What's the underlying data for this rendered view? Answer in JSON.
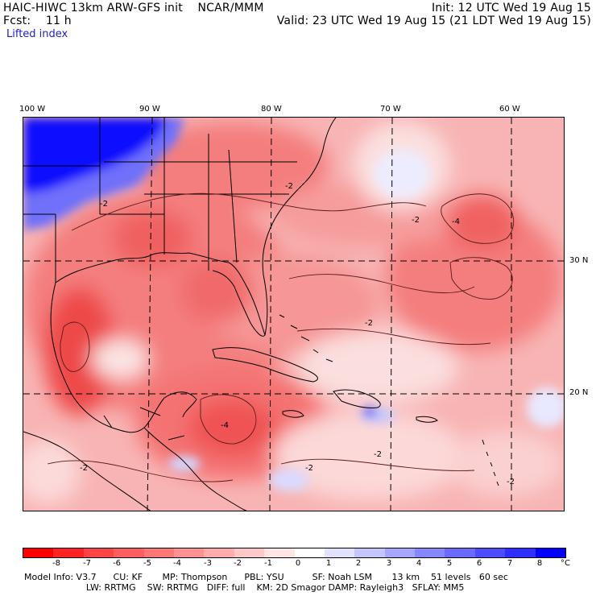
{
  "header": {
    "left_line1": "HAIC-HIWC 13km ARW-GFS init    NCAR/MMM",
    "left_line2": "Fcst:    11 h",
    "right_line1": "Init: 12 UTC Wed 19 Aug 15",
    "right_line2": "Valid: 23 UTC Wed 19 Aug 15 (21 LDT Wed 19 Aug 15)",
    "field_name": "Lifted index"
  },
  "longitude_labels": [
    "100 W",
    "90 W",
    "80 W",
    "70 W",
    "60 W"
  ],
  "latitude_labels": [
    "30 N",
    "20 N"
  ],
  "contour_labels": [
    "-2",
    "-2",
    "-2",
    "-2",
    "-2",
    "-2",
    "-2",
    "-2",
    "-4",
    "-4"
  ],
  "colorbar": {
    "unit": "°C",
    "tick_labels": [
      "-8",
      "-7",
      "-6",
      "-5",
      "-4",
      "-3",
      "-2",
      "-1",
      "0",
      "1",
      "2",
      "3",
      "4",
      "5",
      "6",
      "7",
      "8"
    ],
    "colors": [
      "#ff0000",
      "#ff2222",
      "#ff4444",
      "#fe5e5e",
      "#fd7777",
      "#fe9191",
      "#feacac",
      "#fec8c8",
      "#ffe4e4",
      "#ffffff",
      "#e2e2fe",
      "#c4c4fe",
      "#a6a6fe",
      "#8888fe",
      "#6a6afe",
      "#4c4cfe",
      "#2e2efe",
      "#0000ff"
    ]
  },
  "footer": {
    "line1": "Model Info: V3.7      CU: KF       MP: Thompson      PBL: YSU          SF: Noah LSM       13 km    51 levels   60 sec",
    "line2": "                      LW: RRTMG    SW: RRTMG   DIFF: full    KM: 2D Smagor DAMP: Rayleigh3   SFLAY: MM5"
  }
}
